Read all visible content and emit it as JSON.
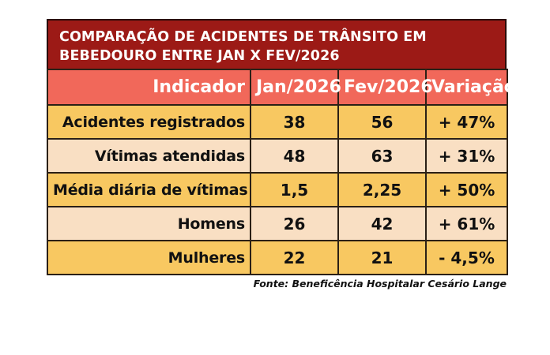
{
  "chart_data": {
    "type": "table",
    "title": "COMPARAÇÃO DE ACIDENTES DE TRÂNSITO EM BEBEDOURO ENTRE JAN X FEV/2026",
    "title_lines": [
      "COMPARAÇÃO DE ACIDENTES DE TRÂNSITO EM",
      "BEBEDOURO ENTRE JAN X FEV/2026"
    ],
    "columns": [
      "Indicador",
      "Jan/2026",
      "Fev/2026",
      "Variação"
    ],
    "rows": [
      {
        "indicador": "Acidentes registrados",
        "jan": "38",
        "fev": "56",
        "variacao": "+ 47%"
      },
      {
        "indicador": "Vítimas atendidas",
        "jan": "48",
        "fev": "63",
        "variacao": "+ 31%"
      },
      {
        "indicador": "Média diária de vítimas",
        "jan": "1,5",
        "fev": "2,25",
        "variacao": "+ 50%"
      },
      {
        "indicador": "Homens",
        "jan": "26",
        "fev": "42",
        "variacao": "+ 61%"
      },
      {
        "indicador": "Mulheres",
        "jan": "22",
        "fev": "21",
        "variacao": "- 4,5%"
      }
    ],
    "source": "Fonte: Beneficência Hospitalar Cesário Lange"
  },
  "colors": {
    "title_bg": "#9c1a16",
    "header_bg": "#f1685a",
    "row_odd_bg": "#f8c861",
    "row_even_bg": "#f9dfc3"
  }
}
